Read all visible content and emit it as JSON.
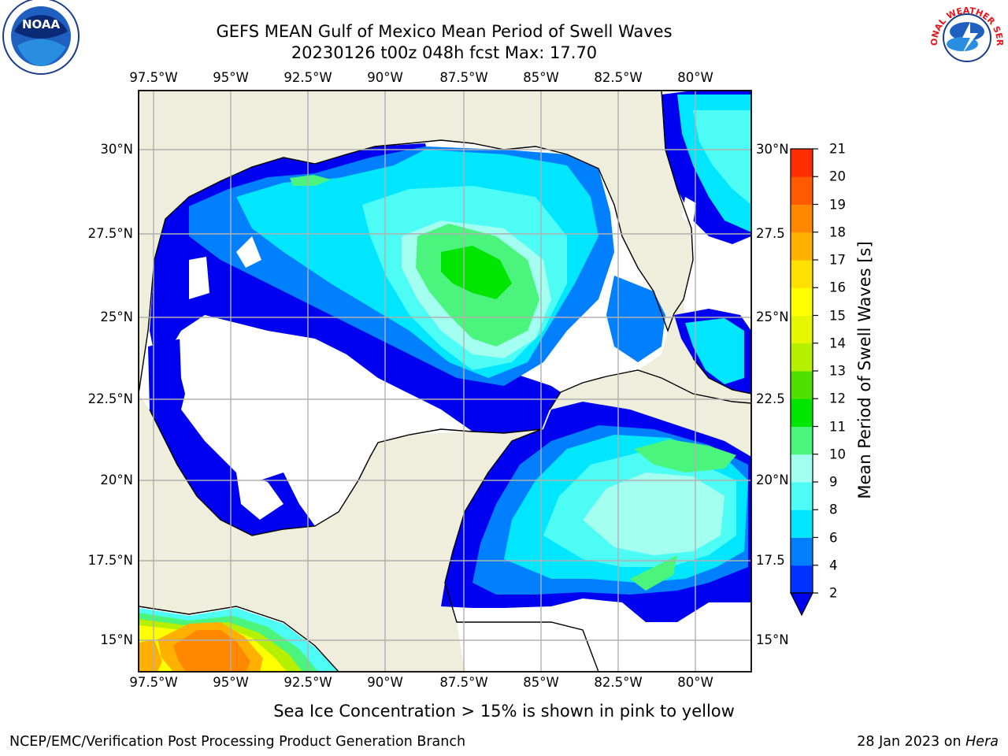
{
  "title": {
    "line1": "GEFS MEAN Gulf of Mexico Mean Period of Swell Waves",
    "line2": "20230126 t00z 048h fcst   Max: 17.70"
  },
  "subtitle": "Sea Ice Concentration > 15% is shown in pink to yellow",
  "footer": {
    "org": "NCEP/EMC/Verification Post Processing Product Generation Branch",
    "date": "28 Jan 2023 on",
    "host": "Hera"
  },
  "logos": {
    "noara_text": "NOAA",
    "nws_text": "NATIONAL WEATHER SERVICE"
  },
  "map": {
    "lon_labels": [
      "97.5°W",
      "95°W",
      "92.5°W",
      "90°W",
      "87.5°W",
      "85°W",
      "82.5°W",
      "80°W"
    ],
    "lat_labels_left": [
      "30°N",
      "27.5°N",
      "25°N",
      "22.5°N",
      "20°N",
      "17.5°N",
      "15°N"
    ],
    "lat_labels_right": [
      "30°N",
      "27.5",
      "25°N",
      "22.5",
      "20°N",
      "17.5",
      "15°N"
    ],
    "land_color": "#efeedc",
    "grid_color": "#b0b0b0"
  },
  "colorbar": {
    "title": "Mean Period of Swell Waves [s]",
    "ticks": [
      "2",
      "4",
      "6",
      "8",
      "9",
      "10",
      "11",
      "12",
      "13",
      "14",
      "15",
      "16",
      "17",
      "18",
      "19",
      "20",
      "21"
    ],
    "colors": [
      "#0032ff",
      "#0080ff",
      "#00e6ff",
      "#4dfdf5",
      "#a3fff0",
      "#4bf57d",
      "#00e600",
      "#50e000",
      "#b4f000",
      "#e6f500",
      "#ffff00",
      "#ffe000",
      "#ffb000",
      "#ff8800",
      "#ff5a00",
      "#ff2e00",
      "#ff0000"
    ],
    "under_color": "#0000f0"
  }
}
